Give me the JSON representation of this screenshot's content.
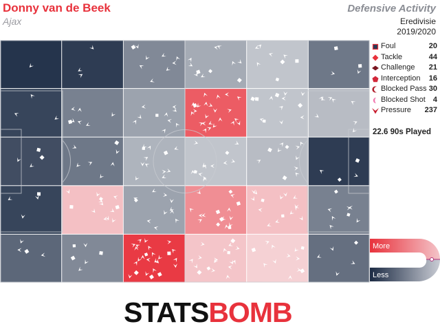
{
  "header": {
    "player": "Donny van de Beek",
    "team": "Ajax",
    "title": "Defensive Activity",
    "competition": "Eredivisie",
    "season": "2019/2020"
  },
  "legend": [
    {
      "label": "Foul",
      "count": "20",
      "icon": "square-icon"
    },
    {
      "label": "Tackle",
      "count": "44",
      "icon": "diamond-icon"
    },
    {
      "label": "Challenge",
      "count": "21",
      "icon": "wide-diamond-icon"
    },
    {
      "label": "Interception",
      "count": "16",
      "icon": "pentagon-icon"
    },
    {
      "label": "Blocked Pass",
      "count": "30",
      "icon": "crescent-icon"
    },
    {
      "label": "Blocked Shot",
      "count": "4",
      "icon": "half-moon-icon"
    },
    {
      "label": "Pressure",
      "count": "237",
      "icon": "chevron-icon"
    }
  ],
  "played": "22.6 90s Played",
  "scale": {
    "more": "More",
    "less": "Less",
    "high_color": "#e8323c",
    "low_color": "#1c2b44"
  },
  "logo": {
    "part1": "STATS",
    "part2": "BOMB"
  },
  "chart_data": {
    "type": "heatmap",
    "description_grid": "6 columns x 5 rows zones over a football pitch; cell value = relative activity (-1 much less than average, +1 much more)",
    "columns": 6,
    "rows": 5,
    "values": [
      [
        -0.95,
        -0.9,
        -0.45,
        -0.25,
        -0.1,
        -0.55
      ],
      [
        -0.85,
        -0.5,
        -0.3,
        0.75,
        -0.1,
        -0.15
      ],
      [
        -0.8,
        -0.55,
        -0.2,
        -0.1,
        -0.15,
        -0.9
      ],
      [
        -0.85,
        0.15,
        -0.3,
        0.45,
        0.15,
        -0.5
      ],
      [
        -0.65,
        -0.45,
        0.95,
        0.12,
        0.05,
        -0.6
      ]
    ],
    "event_counts": [
      [
        1,
        3,
        9,
        12,
        10,
        4
      ],
      [
        3,
        7,
        12,
        26,
        14,
        10
      ],
      [
        5,
        8,
        12,
        14,
        12,
        4
      ],
      [
        4,
        16,
        12,
        20,
        16,
        8
      ],
      [
        4,
        8,
        28,
        18,
        14,
        6
      ]
    ]
  }
}
